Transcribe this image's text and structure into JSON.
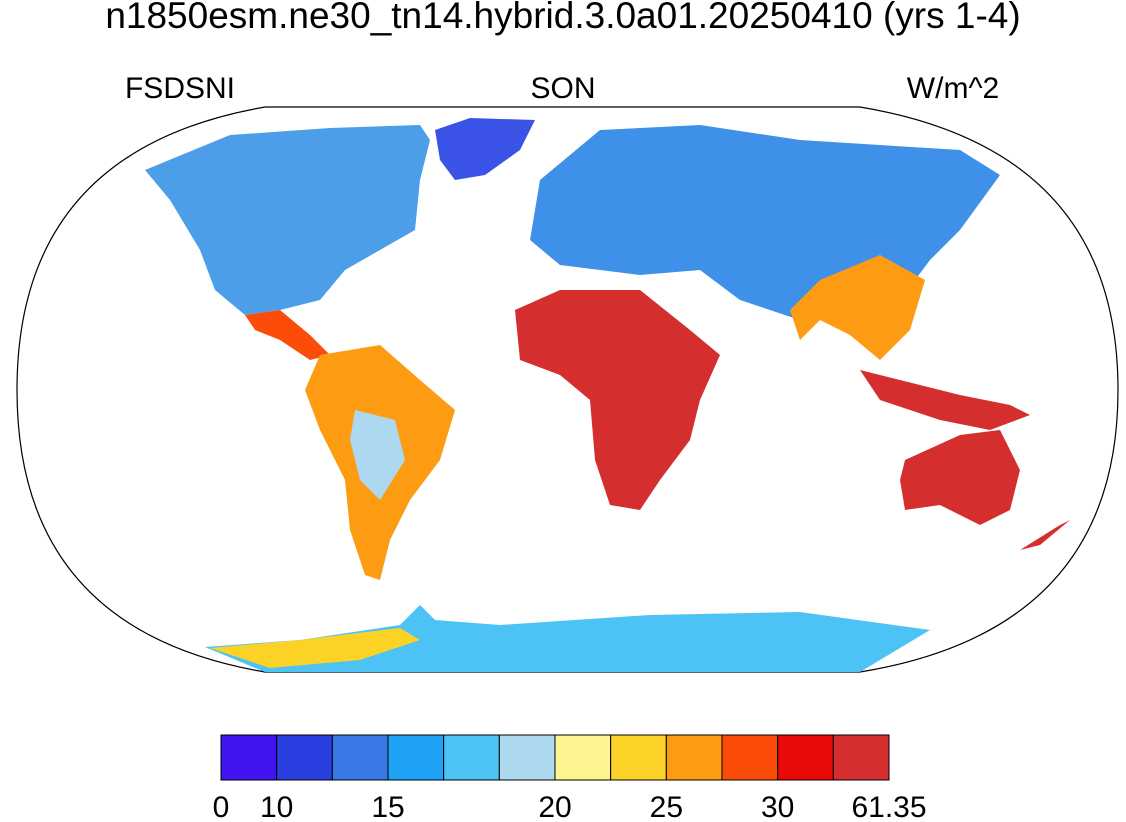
{
  "map": {
    "title": "n1850esm.ne30_tn14.hybrid.3.0a01.20250410 (yrs 1-4)",
    "left_label": "FSDSNI",
    "center_label": "SON",
    "right_label": "W/m^2",
    "colorbar": {
      "colors": [
        "#4214f0",
        "#2a3fe0",
        "#3a78e6",
        "#1ea2f5",
        "#4cc2f5",
        "#acd9f0",
        "#fdf690",
        "#fdd226",
        "#fd9b12",
        "#fc4c0a",
        "#e80a08",
        "#d42e2e"
      ],
      "labels": [
        "0",
        "10",
        "15",
        "20",
        "25",
        "30",
        "61.35"
      ]
    }
  }
}
